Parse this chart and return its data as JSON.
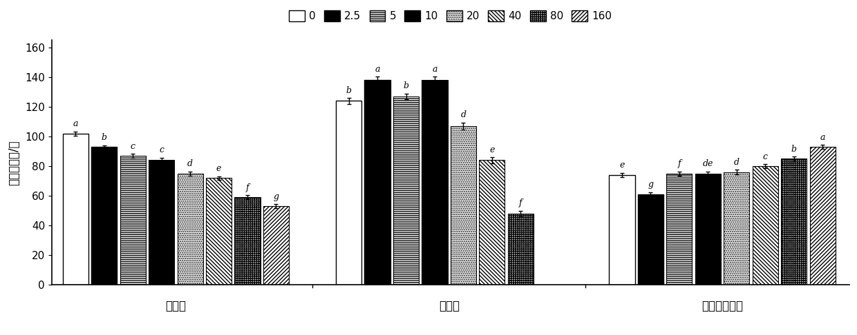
{
  "groups": [
    "水杨酸",
    "肉桂酸",
    "对羟基苯甲酸"
  ],
  "legend_labels": [
    "0",
    "2.5",
    "5",
    "10",
    "20",
    "40",
    "80",
    "160"
  ],
  "values": [
    [
      102,
      93,
      87,
      84,
      75,
      72,
      59,
      53
    ],
    [
      124,
      138,
      127,
      138,
      107,
      84,
      48,
      null
    ],
    [
      74,
      61,
      75,
      75,
      76,
      80,
      85,
      93
    ]
  ],
  "errors": [
    [
      1.5,
      1.2,
      1.5,
      1.8,
      1.5,
      1.2,
      1.5,
      1.5
    ],
    [
      2.0,
      2.5,
      2.0,
      2.5,
      2.5,
      2.0,
      2.0,
      null
    ],
    [
      1.5,
      1.5,
      1.5,
      1.5,
      1.5,
      1.5,
      1.5,
      1.5
    ]
  ],
  "significance_labels": [
    [
      "a",
      "b",
      "c",
      "c",
      "d",
      "e",
      "f",
      "g"
    ],
    [
      "b",
      "a",
      "b",
      "a",
      "d",
      "e",
      "f",
      null
    ],
    [
      "e",
      "g",
      "f",
      "de",
      "d",
      "c",
      "b",
      "a"
    ]
  ],
  "ylabel": "孢子萌发数/个",
  "ylim": [
    0,
    165
  ],
  "yticks": [
    0,
    20,
    40,
    60,
    80,
    100,
    120,
    140,
    160
  ],
  "bar_width": 0.7,
  "group_positions": [
    1.0,
    4.5,
    8.0
  ],
  "n_bars": 8,
  "background_color": "#ffffff"
}
